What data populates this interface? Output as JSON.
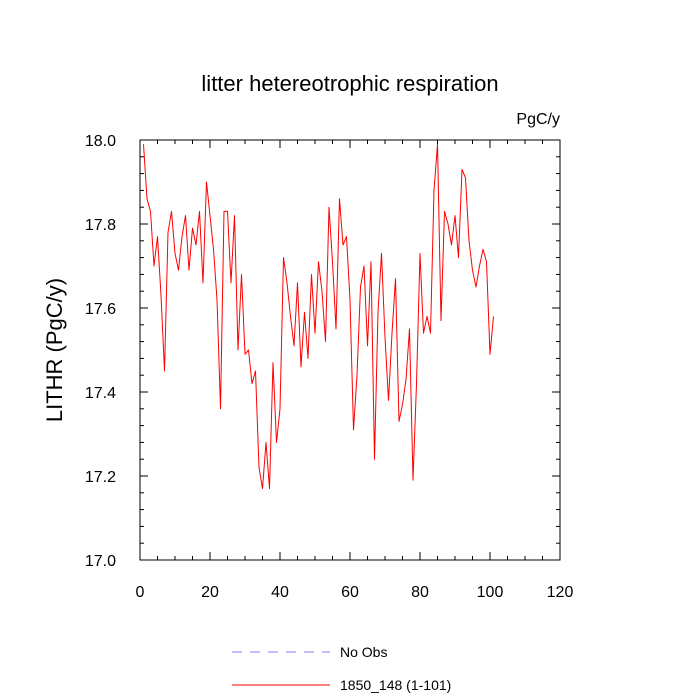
{
  "chart_data": {
    "type": "line",
    "title": "litter hetereotrophic respiration",
    "units": "PgC/y",
    "xlabel": "",
    "ylabel": "LITHR  (PgC/y)",
    "xlim": [
      0,
      120
    ],
    "ylim": [
      17.0,
      18.0
    ],
    "x_ticks": [
      0,
      20,
      40,
      60,
      80,
      100,
      120
    ],
    "x_tick_labels": [
      "0",
      "20",
      "40",
      "60",
      "80",
      "100",
      "120"
    ],
    "y_ticks": [
      17.0,
      17.2,
      17.4,
      17.6,
      17.8,
      18.0
    ],
    "y_tick_labels": [
      "17.0",
      "17.2",
      "17.4",
      "17.6",
      "17.8",
      "18.0"
    ],
    "legend": [
      {
        "label": "No Obs",
        "color": "#8080ff",
        "style": "dashed"
      },
      {
        "label": "1850_148 (1-101)",
        "color": "#ff0000",
        "style": "solid"
      }
    ],
    "series": [
      {
        "name": "1850_148 (1-101)",
        "color": "#ff0000",
        "x_start": 1,
        "values": [
          17.99,
          17.86,
          17.83,
          17.7,
          17.77,
          17.63,
          17.45,
          17.78,
          17.83,
          17.73,
          17.69,
          17.77,
          17.82,
          17.69,
          17.79,
          17.75,
          17.83,
          17.66,
          17.9,
          17.82,
          17.74,
          17.62,
          17.36,
          17.83,
          17.83,
          17.66,
          17.82,
          17.5,
          17.68,
          17.49,
          17.5,
          17.42,
          17.45,
          17.22,
          17.17,
          17.28,
          17.17,
          17.47,
          17.28,
          17.36,
          17.72,
          17.66,
          17.58,
          17.51,
          17.66,
          17.46,
          17.59,
          17.48,
          17.68,
          17.54,
          17.71,
          17.64,
          17.52,
          17.84,
          17.71,
          17.55,
          17.86,
          17.75,
          17.77,
          17.62,
          17.31,
          17.44,
          17.65,
          17.7,
          17.51,
          17.71,
          17.24,
          17.59,
          17.73,
          17.53,
          17.38,
          17.54,
          17.67,
          17.33,
          17.37,
          17.43,
          17.55,
          17.19,
          17.42,
          17.73,
          17.54,
          17.58,
          17.54,
          17.88,
          17.99,
          17.57,
          17.83,
          17.8,
          17.75,
          17.82,
          17.72,
          17.93,
          17.91,
          17.76,
          17.69,
          17.65,
          17.7,
          17.74,
          17.71,
          17.49,
          17.58
        ]
      }
    ]
  }
}
